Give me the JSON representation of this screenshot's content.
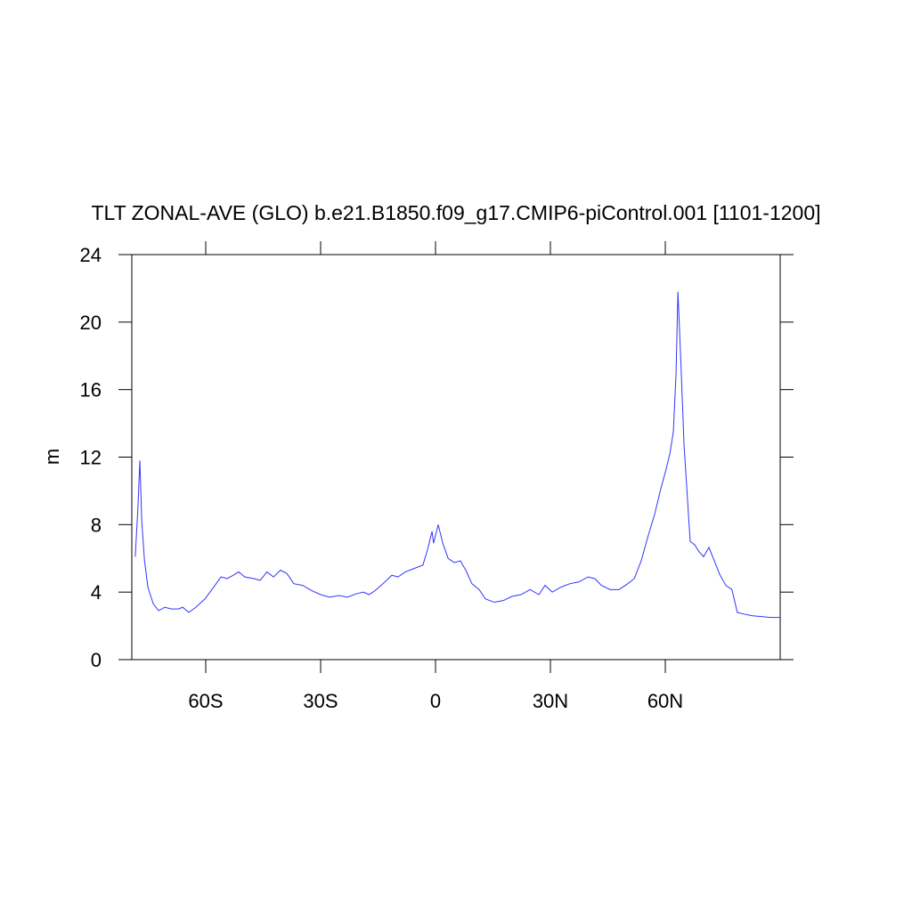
{
  "chart_data": {
    "type": "line",
    "title": "TLT ZONAL-AVE (GLO) b.e21.B1850.f09_g17.CMIP6-piControl.001 [1101-1200]",
    "y_label": "m",
    "xlim": [
      -79.3,
      90
    ],
    "ylim": [
      0,
      24
    ],
    "xticks": [
      {
        "value": -60,
        "label": "60S"
      },
      {
        "value": -30,
        "label": "30S"
      },
      0,
      {
        "value": 30,
        "label": "30N"
      },
      {
        "value": 60,
        "label": "60N"
      }
    ],
    "yticks": [
      0,
      4,
      8,
      12,
      16,
      20,
      24
    ],
    "series": [
      {
        "color": "#3333ff",
        "x": [
          -78.4,
          -77.7,
          -77.2,
          -76.7,
          -76.0,
          -75.1,
          -73.7,
          -72.3,
          -70.7,
          -68.8,
          -67.2,
          -66.0,
          -64.4,
          -62.6,
          -60.2,
          -57.9,
          -56.0,
          -54.4,
          -52.8,
          -51.4,
          -49.8,
          -47.4,
          -45.8,
          -44.0,
          -42.3,
          -40.5,
          -38.8,
          -37.0,
          -34.7,
          -32.4,
          -30.0,
          -27.7,
          -25.3,
          -23.0,
          -20.7,
          -18.8,
          -17.4,
          -16.0,
          -13.7,
          -11.4,
          -9.8,
          -7.9,
          -5.6,
          -3.3,
          -2.1,
          -0.9,
          -0.5,
          0.7,
          1.9,
          3.3,
          4.9,
          6.5,
          7.9,
          9.5,
          11.4,
          13.0,
          15.3,
          17.7,
          20.0,
          22.3,
          24.7,
          27.0,
          28.6,
          30.5,
          32.8,
          35.1,
          37.4,
          39.8,
          41.6,
          43.3,
          45.6,
          47.9,
          50.2,
          51.9,
          53.7,
          55.6,
          57.2,
          58.8,
          60.0,
          61.2,
          62.1,
          62.8,
          63.3,
          64.0,
          64.9,
          65.8,
          66.5,
          67.7,
          68.8,
          70.0,
          71.4,
          72.8,
          74.2,
          75.8,
          77.4,
          78.8,
          80.5,
          82.8,
          85.1,
          87.4,
          90.0
        ],
        "values": [
          6.1,
          9.0,
          11.8,
          8.2,
          5.9,
          4.3,
          3.3,
          2.9,
          3.1,
          3.0,
          3.0,
          3.1,
          2.8,
          3.1,
          3.6,
          4.3,
          4.9,
          4.8,
          5.0,
          5.2,
          4.9,
          4.8,
          4.7,
          5.2,
          4.9,
          5.3,
          5.1,
          4.5,
          4.4,
          4.1,
          3.85,
          3.7,
          3.8,
          3.7,
          3.9,
          4.0,
          3.85,
          4.05,
          4.5,
          5.0,
          4.9,
          5.2,
          5.4,
          5.6,
          6.5,
          7.6,
          6.9,
          8.0,
          6.9,
          6.0,
          5.75,
          5.85,
          5.3,
          4.5,
          4.15,
          3.6,
          3.4,
          3.5,
          3.75,
          3.85,
          4.15,
          3.85,
          4.4,
          4.0,
          4.3,
          4.5,
          4.6,
          4.9,
          4.8,
          4.4,
          4.15,
          4.15,
          4.5,
          4.8,
          5.85,
          7.4,
          8.6,
          10.1,
          11.1,
          12.2,
          13.5,
          16.9,
          21.8,
          18.0,
          12.7,
          9.5,
          7.0,
          6.8,
          6.4,
          6.1,
          6.65,
          5.85,
          5.05,
          4.4,
          4.15,
          2.8,
          2.7,
          2.6,
          2.55,
          2.5,
          2.5
        ]
      }
    ]
  }
}
